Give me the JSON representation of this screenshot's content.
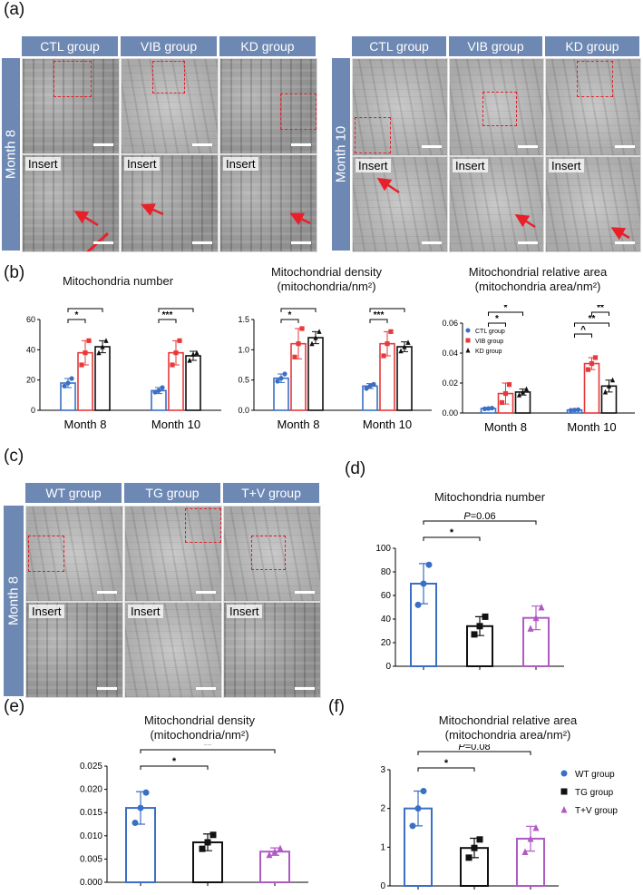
{
  "panel_labels": {
    "a": "(a)",
    "b": "(b)",
    "c": "(c)",
    "d": "(d)",
    "e": "(e)",
    "f": "(f)"
  },
  "insert_label": "Insert",
  "panel_a": {
    "left": {
      "side_label": "Month 8",
      "groups": [
        "CTL group",
        "VIB group",
        "KD group"
      ]
    },
    "right": {
      "side_label": "Month 10",
      "groups": [
        "CTL group",
        "VIB group",
        "KD group"
      ]
    }
  },
  "panel_c": {
    "side_label": "Month 8",
    "groups": [
      "WT group",
      "TG group",
      "T+V group"
    ]
  },
  "colors": {
    "ctl": "#3a6fc4",
    "vib": "#e8393a",
    "kd": "#111111",
    "wt": "#3a6fc4",
    "tg": "#111111",
    "tv": "#b05ac4"
  },
  "chart_data": [
    {
      "id": "b1",
      "type": "bar",
      "title": "Mitochondria number",
      "categories": [
        "Month 8",
        "Month 10"
      ],
      "ylim": [
        0,
        60
      ],
      "yticks": [
        0,
        20,
        40,
        60
      ],
      "series": [
        {
          "values": [
            18,
            13
          ],
          "errors": [
            3,
            2
          ],
          "points": [
            [
              16,
              18,
              21
            ],
            [
              12,
              13,
              15
            ]
          ]
        },
        {
          "values": [
            38,
            38
          ],
          "errors": [
            8,
            8
          ],
          "points": [
            [
              30,
              38,
              46
            ],
            [
              30,
              38,
              46
            ]
          ]
        },
        {
          "values": [
            42,
            36
          ],
          "errors": [
            4,
            3
          ],
          "points": [
            [
              38,
              42,
              46
            ],
            [
              33,
              37,
              38
            ]
          ]
        }
      ],
      "significance": [
        {
          "label": "*",
          "cat": 0,
          "from": 0,
          "to": 1
        },
        {
          "label": "**",
          "cat": 0,
          "from": 0,
          "to": 2
        },
        {
          "label": "***",
          "cat": 1,
          "from": 0,
          "to": 1
        },
        {
          "label": "***",
          "cat": 1,
          "from": 0,
          "to": 2
        }
      ]
    },
    {
      "id": "b2",
      "type": "bar",
      "title": "Mitochondrial density",
      "subtitle": "(mitochondria/nm²)",
      "categories": [
        "Month 8",
        "Month 10"
      ],
      "ylim": [
        0,
        1.5
      ],
      "yticks": [
        "0.0",
        "0.5",
        "1.0",
        "1.5"
      ],
      "series": [
        {
          "values": [
            0.53,
            0.4
          ],
          "errors": [
            0.07,
            0.04
          ],
          "points": [
            [
              0.48,
              0.53,
              0.6
            ],
            [
              0.36,
              0.4,
              0.43
            ]
          ]
        },
        {
          "values": [
            1.1,
            1.1
          ],
          "errors": [
            0.25,
            0.2
          ],
          "points": [
            [
              0.88,
              1.1,
              1.35
            ],
            [
              0.9,
              1.1,
              1.3
            ]
          ]
        },
        {
          "values": [
            1.2,
            1.05
          ],
          "errors": [
            0.1,
            0.08
          ],
          "points": [
            [
              1.1,
              1.2,
              1.3
            ],
            [
              0.98,
              1.05,
              1.12
            ]
          ]
        }
      ],
      "significance": [
        {
          "label": "*",
          "cat": 0,
          "from": 0,
          "to": 1
        },
        {
          "label": "**",
          "cat": 0,
          "from": 0,
          "to": 2
        },
        {
          "label": "***",
          "cat": 1,
          "from": 0,
          "to": 1
        },
        {
          "label": "***",
          "cat": 1,
          "from": 0,
          "to": 2
        }
      ]
    },
    {
      "id": "b3",
      "type": "bar",
      "title": "Mitochondrial relative area",
      "subtitle": "(mitochondria area/nm²)",
      "categories": [
        "Month 8",
        "Month 10"
      ],
      "ylim": [
        0,
        0.06
      ],
      "yticks": [
        "0.00",
        "0.02",
        "0.04",
        "0.06"
      ],
      "legend": [
        "CTL group",
        "VIB group",
        "KD group"
      ],
      "series": [
        {
          "values": [
            0.003,
            0.002
          ],
          "errors": [
            0.0005,
            0.0004
          ],
          "points": [
            [
              0.0028,
              0.003,
              0.0033
            ],
            [
              0.0018,
              0.002,
              0.0022
            ]
          ]
        },
        {
          "values": [
            0.013,
            0.033
          ],
          "errors": [
            0.007,
            0.004
          ],
          "points": [
            [
              0.007,
              0.013,
              0.019
            ],
            [
              0.029,
              0.033,
              0.037
            ]
          ]
        },
        {
          "values": [
            0.014,
            0.018
          ],
          "errors": [
            0.002,
            0.004
          ],
          "points": [
            [
              0.012,
              0.014,
              0.016
            ],
            [
              0.014,
              0.018,
              0.022
            ]
          ]
        }
      ],
      "significance": [
        {
          "label": "*",
          "cat": 0,
          "from": 0,
          "to": 1
        },
        {
          "label": "*",
          "cat": 0,
          "from": 0,
          "to": 2
        },
        {
          "label": "^",
          "cat": 1,
          "from": 0,
          "to": 1
        },
        {
          "label": "**",
          "cat": 1,
          "from": 0,
          "to": 2
        },
        {
          "label": "**",
          "cat": 1,
          "from": 1,
          "to": 2
        }
      ]
    },
    {
      "id": "d",
      "type": "bar",
      "title": "Mitochondria number",
      "ylim": [
        0,
        100
      ],
      "yticks": [
        0,
        20,
        40,
        60,
        80,
        100
      ],
      "values": [
        70,
        34,
        41
      ],
      "errors": [
        17,
        8,
        10
      ],
      "points": [
        [
          52,
          70,
          86
        ],
        [
          27,
          34,
          42
        ],
        [
          32,
          41,
          50
        ]
      ],
      "significance": [
        {
          "label": "*",
          "from": 0,
          "to": 1
        },
        {
          "label": "=0.06",
          "italic_prefix": "P",
          "from": 0,
          "to": 2
        }
      ]
    },
    {
      "id": "e",
      "type": "bar",
      "title": "Mitochondrial density",
      "subtitle": "(mitochondria/nm²)",
      "ylim": [
        0,
        0.025
      ],
      "yticks": [
        "0.000",
        "0.005",
        "0.010",
        "0.015",
        "0.020",
        "0.025"
      ],
      "values": [
        0.016,
        0.0086,
        0.0066
      ],
      "errors": [
        0.0035,
        0.0018,
        0.0008
      ],
      "points": [
        [
          0.0128,
          0.016,
          0.0193
        ],
        [
          0.0072,
          0.0086,
          0.0102
        ],
        [
          0.0059,
          0.0066,
          0.0073
        ]
      ],
      "significance": [
        {
          "label": "*",
          "from": 0,
          "to": 1
        },
        {
          "label": "**",
          "from": 0,
          "to": 2
        }
      ]
    },
    {
      "id": "f",
      "type": "bar",
      "title": "Mitochondrial relative area",
      "subtitle": "(mitochondria area/nm²)",
      "ylim": [
        0,
        3
      ],
      "yticks": [
        0,
        1,
        2,
        3
      ],
      "legend": [
        "WT group",
        "TG group",
        "T+V group"
      ],
      "values": [
        2.0,
        0.98,
        1.22
      ],
      "errors": [
        0.45,
        0.25,
        0.32
      ],
      "points": [
        [
          1.55,
          2.0,
          2.45
        ],
        [
          0.73,
          0.98,
          1.2
        ],
        [
          0.88,
          1.22,
          1.5
        ]
      ],
      "significance": [
        {
          "label": "*",
          "from": 0,
          "to": 1
        },
        {
          "label": "=0.08",
          "italic_prefix": "P",
          "from": 0,
          "to": 2
        }
      ]
    }
  ]
}
